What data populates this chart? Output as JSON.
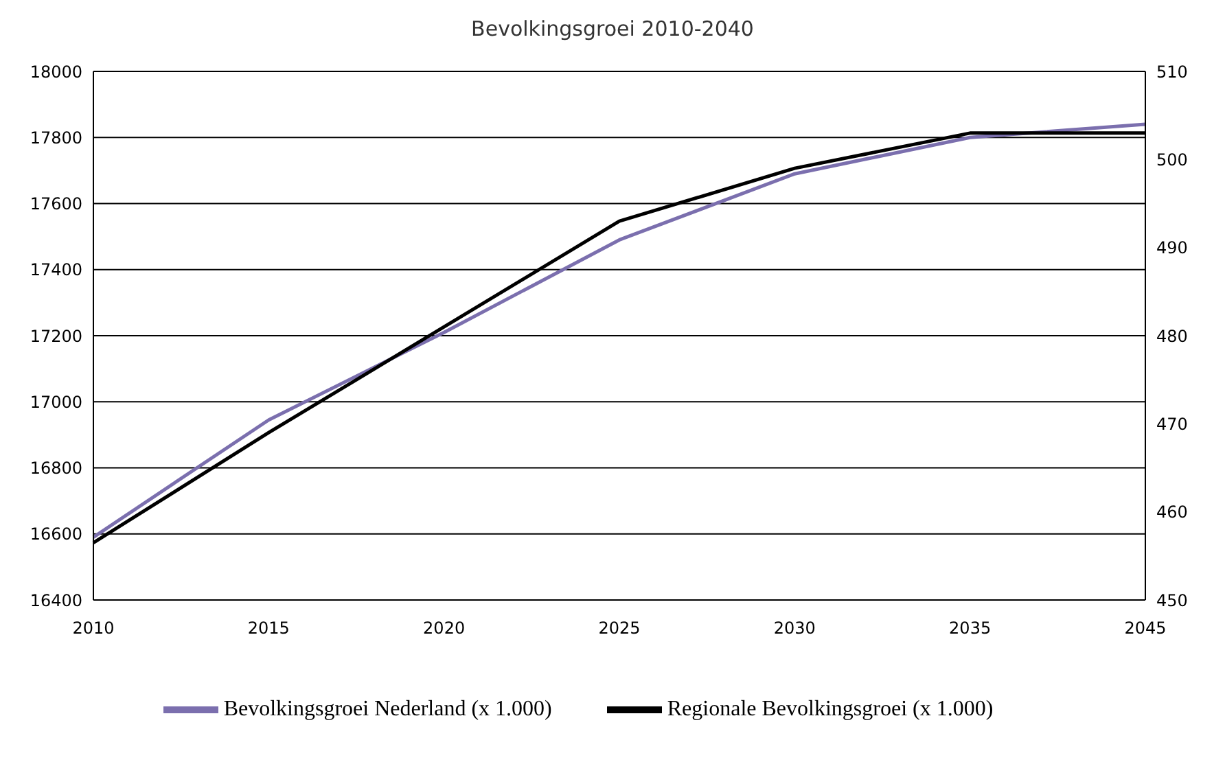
{
  "chart_data": {
    "type": "line",
    "title": "Bevolkingsgroei 2010-2040",
    "categories": [
      "2010",
      "2015",
      "2020",
      "2025",
      "2030",
      "2035",
      "2045"
    ],
    "series": [
      {
        "name": "Bevolkingsgroei Nederland (x 1.000)",
        "color": "#7b6fae",
        "values": [
          16590,
          16945,
          17210,
          17490,
          17690,
          17800,
          17840
        ]
      },
      {
        "name": "Regionale Bevolkingsgroei (x 1.000)",
        "color": "#000000",
        "axis": "y2",
        "values": [
          456.5,
          469,
          481,
          493,
          499,
          503,
          503
        ]
      }
    ],
    "ylim": [
      16400,
      18000
    ],
    "yticks": [
      16400,
      16600,
      16800,
      17000,
      17200,
      17400,
      17600,
      17800,
      18000
    ],
    "y2lim": [
      450,
      510
    ],
    "y2ticks": [
      450,
      460,
      470,
      480,
      490,
      500,
      510
    ],
    "grid": "y",
    "legend": "bottom",
    "marker": "none",
    "line_style": "solid"
  }
}
